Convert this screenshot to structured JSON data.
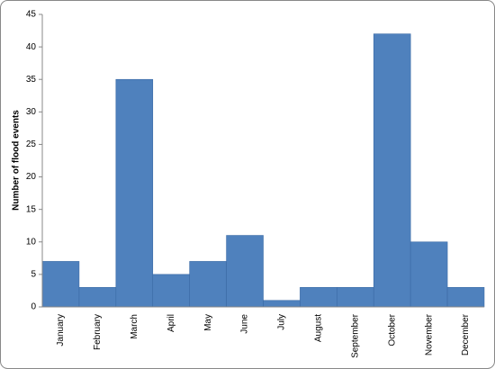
{
  "chart_data": {
    "type": "bar",
    "y_label": "Number of flood events",
    "categories": [
      "January",
      "February",
      "March",
      "April",
      "May",
      "June",
      "July",
      "August",
      "September",
      "October",
      "November",
      "December"
    ],
    "values": [
      7,
      3,
      35,
      5,
      7,
      11,
      1,
      3,
      3,
      42,
      10,
      3
    ],
    "color": "#4f81bd",
    "ylim": [
      0,
      45
    ],
    "yticks": [
      0,
      5,
      10,
      15,
      20,
      25,
      30,
      35,
      40,
      45
    ],
    "grid": false
  }
}
